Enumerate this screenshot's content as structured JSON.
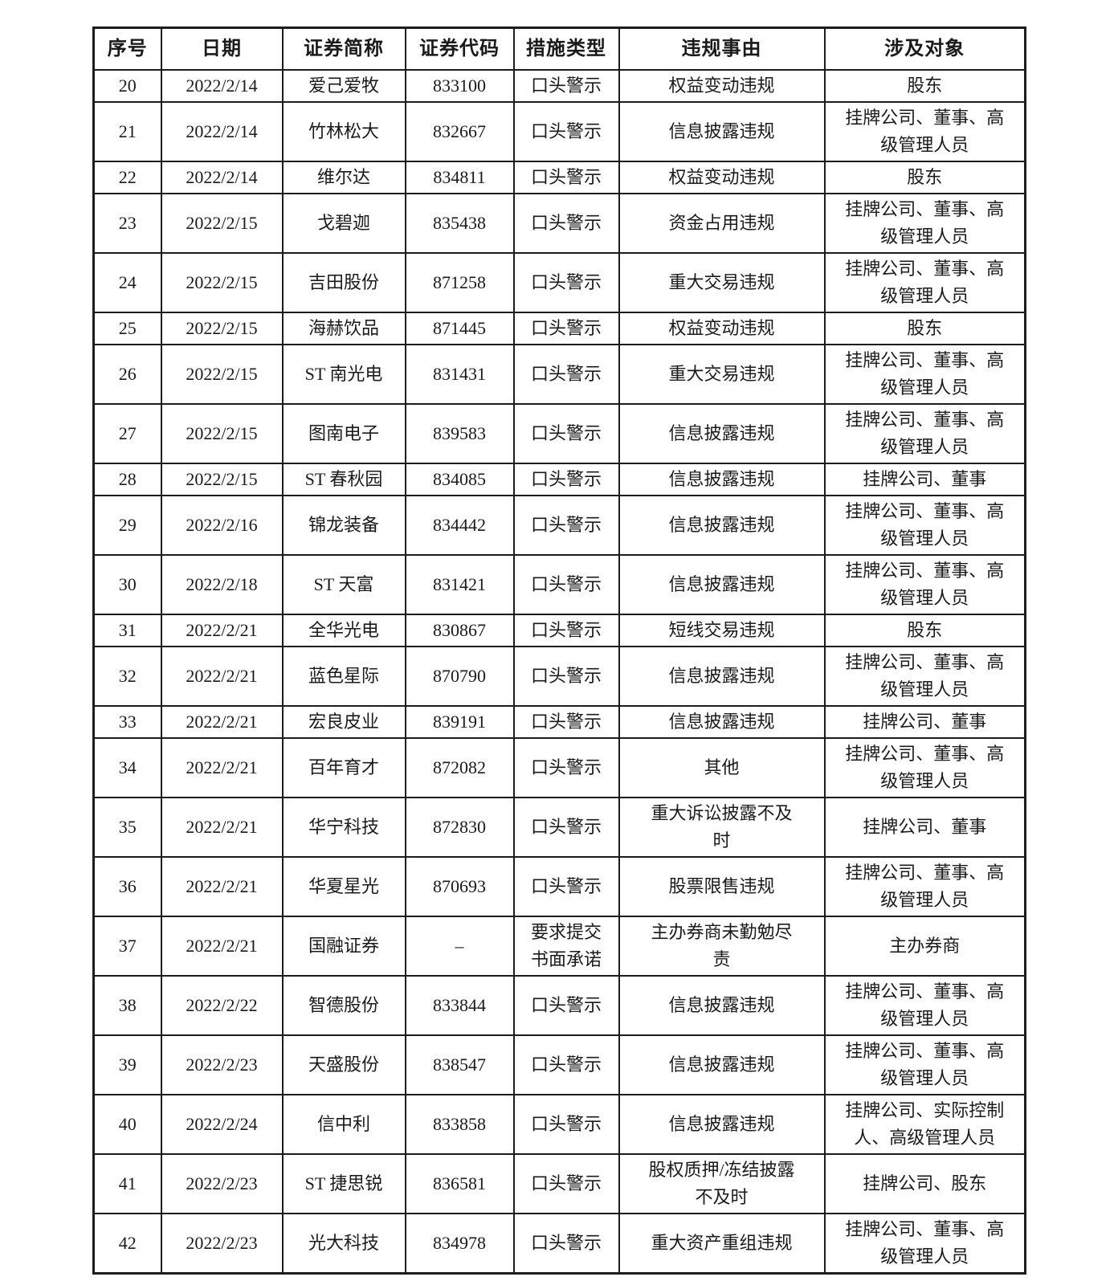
{
  "table": {
    "columns": [
      "序号",
      "日期",
      "证券简称",
      "证券代码",
      "措施类型",
      "违规事由",
      "涉及对象"
    ],
    "rows": [
      {
        "no": "20",
        "date": "2022/2/14",
        "name": "爱己爱牧",
        "code": "833100",
        "measure": "口头警示",
        "reason": "权益变动违规",
        "targets": "股东"
      },
      {
        "no": "21",
        "date": "2022/2/14",
        "name": "竹林松大",
        "code": "832667",
        "measure": "口头警示",
        "reason": "信息披露违规",
        "targets": "挂牌公司、董事、高\n级管理人员"
      },
      {
        "no": "22",
        "date": "2022/2/14",
        "name": "维尔达",
        "code": "834811",
        "measure": "口头警示",
        "reason": "权益变动违规",
        "targets": "股东"
      },
      {
        "no": "23",
        "date": "2022/2/15",
        "name": "戈碧迦",
        "code": "835438",
        "measure": "口头警示",
        "reason": "资金占用违规",
        "targets": "挂牌公司、董事、高\n级管理人员"
      },
      {
        "no": "24",
        "date": "2022/2/15",
        "name": "吉田股份",
        "code": "871258",
        "measure": "口头警示",
        "reason": "重大交易违规",
        "targets": "挂牌公司、董事、高\n级管理人员"
      },
      {
        "no": "25",
        "date": "2022/2/15",
        "name": "海赫饮品",
        "code": "871445",
        "measure": "口头警示",
        "reason": "权益变动违规",
        "targets": "股东"
      },
      {
        "no": "26",
        "date": "2022/2/15",
        "name": "ST 南光电",
        "code": "831431",
        "measure": "口头警示",
        "reason": "重大交易违规",
        "targets": "挂牌公司、董事、高\n级管理人员"
      },
      {
        "no": "27",
        "date": "2022/2/15",
        "name": "图南电子",
        "code": "839583",
        "measure": "口头警示",
        "reason": "信息披露违规",
        "targets": "挂牌公司、董事、高\n级管理人员"
      },
      {
        "no": "28",
        "date": "2022/2/15",
        "name": "ST 春秋园",
        "code": "834085",
        "measure": "口头警示",
        "reason": "信息披露违规",
        "targets": "挂牌公司、董事"
      },
      {
        "no": "29",
        "date": "2022/2/16",
        "name": "锦龙装备",
        "code": "834442",
        "measure": "口头警示",
        "reason": "信息披露违规",
        "targets": "挂牌公司、董事、高\n级管理人员"
      },
      {
        "no": "30",
        "date": "2022/2/18",
        "name": "ST 天富",
        "code": "831421",
        "measure": "口头警示",
        "reason": "信息披露违规",
        "targets": "挂牌公司、董事、高\n级管理人员"
      },
      {
        "no": "31",
        "date": "2022/2/21",
        "name": "全华光电",
        "code": "830867",
        "measure": "口头警示",
        "reason": "短线交易违规",
        "targets": "股东"
      },
      {
        "no": "32",
        "date": "2022/2/21",
        "name": "蓝色星际",
        "code": "870790",
        "measure": "口头警示",
        "reason": "信息披露违规",
        "targets": "挂牌公司、董事、高\n级管理人员"
      },
      {
        "no": "33",
        "date": "2022/2/21",
        "name": "宏良皮业",
        "code": "839191",
        "measure": "口头警示",
        "reason": "信息披露违规",
        "targets": "挂牌公司、董事"
      },
      {
        "no": "34",
        "date": "2022/2/21",
        "name": "百年育才",
        "code": "872082",
        "measure": "口头警示",
        "reason": "其他",
        "targets": "挂牌公司、董事、高\n级管理人员"
      },
      {
        "no": "35",
        "date": "2022/2/21",
        "name": "华宁科技",
        "code": "872830",
        "measure": "口头警示",
        "reason": "重大诉讼披露不及\n时",
        "targets": "挂牌公司、董事"
      },
      {
        "no": "36",
        "date": "2022/2/21",
        "name": "华夏星光",
        "code": "870693",
        "measure": "口头警示",
        "reason": "股票限售违规",
        "targets": "挂牌公司、董事、高\n级管理人员"
      },
      {
        "no": "37",
        "date": "2022/2/21",
        "name": "国融证券",
        "code": "–",
        "measure": "要求提交\n书面承诺",
        "reason": "主办券商未勤勉尽\n责",
        "targets": "主办券商"
      },
      {
        "no": "38",
        "date": "2022/2/22",
        "name": "智德股份",
        "code": "833844",
        "measure": "口头警示",
        "reason": "信息披露违规",
        "targets": "挂牌公司、董事、高\n级管理人员"
      },
      {
        "no": "39",
        "date": "2022/2/23",
        "name": "天盛股份",
        "code": "838547",
        "measure": "口头警示",
        "reason": "信息披露违规",
        "targets": "挂牌公司、董事、高\n级管理人员"
      },
      {
        "no": "40",
        "date": "2022/2/24",
        "name": "信中利",
        "code": "833858",
        "measure": "口头警示",
        "reason": "信息披露违规",
        "targets": "挂牌公司、实际控制\n人、高级管理人员"
      },
      {
        "no": "41",
        "date": "2022/2/23",
        "name": "ST 捷思锐",
        "code": "836581",
        "measure": "口头警示",
        "reason": "股权质押/冻结披露\n不及时",
        "targets": "挂牌公司、股东"
      },
      {
        "no": "42",
        "date": "2022/2/23",
        "name": "光大科技",
        "code": "834978",
        "measure": "口头警示",
        "reason": "重大资产重组违规",
        "targets": "挂牌公司、董事、高\n级管理人员"
      }
    ]
  }
}
